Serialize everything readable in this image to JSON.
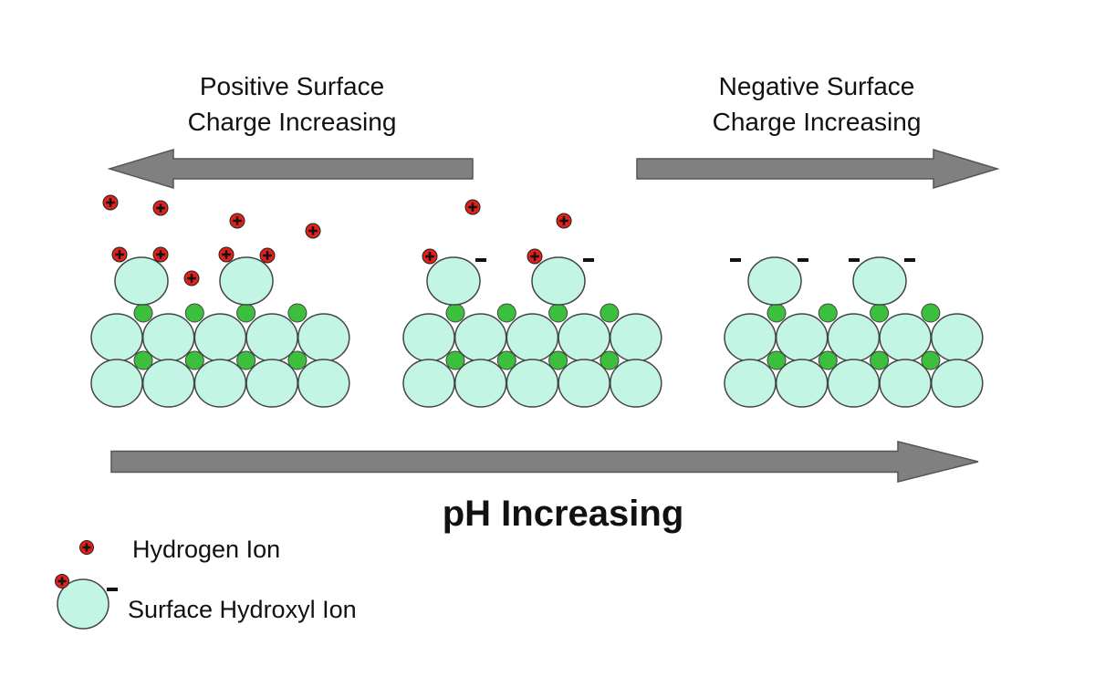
{
  "labels": {
    "left_line1": "Positive Surface",
    "left_line2": "Charge Increasing",
    "right_line1": "Negative Surface",
    "right_line2": "Charge Increasing",
    "ph": "pH Increasing"
  },
  "legend": {
    "hydrogen": "Hydrogen Ion",
    "hydroxyl": "Surface Hydroxyl Ion"
  },
  "symbols": {
    "ion_sign": "+",
    "charge_sign": "-"
  },
  "colors": {
    "surface": "#c2f5e4",
    "bond": "#3cbf3c",
    "ion": "#e0201a",
    "arrow": "#808080"
  }
}
